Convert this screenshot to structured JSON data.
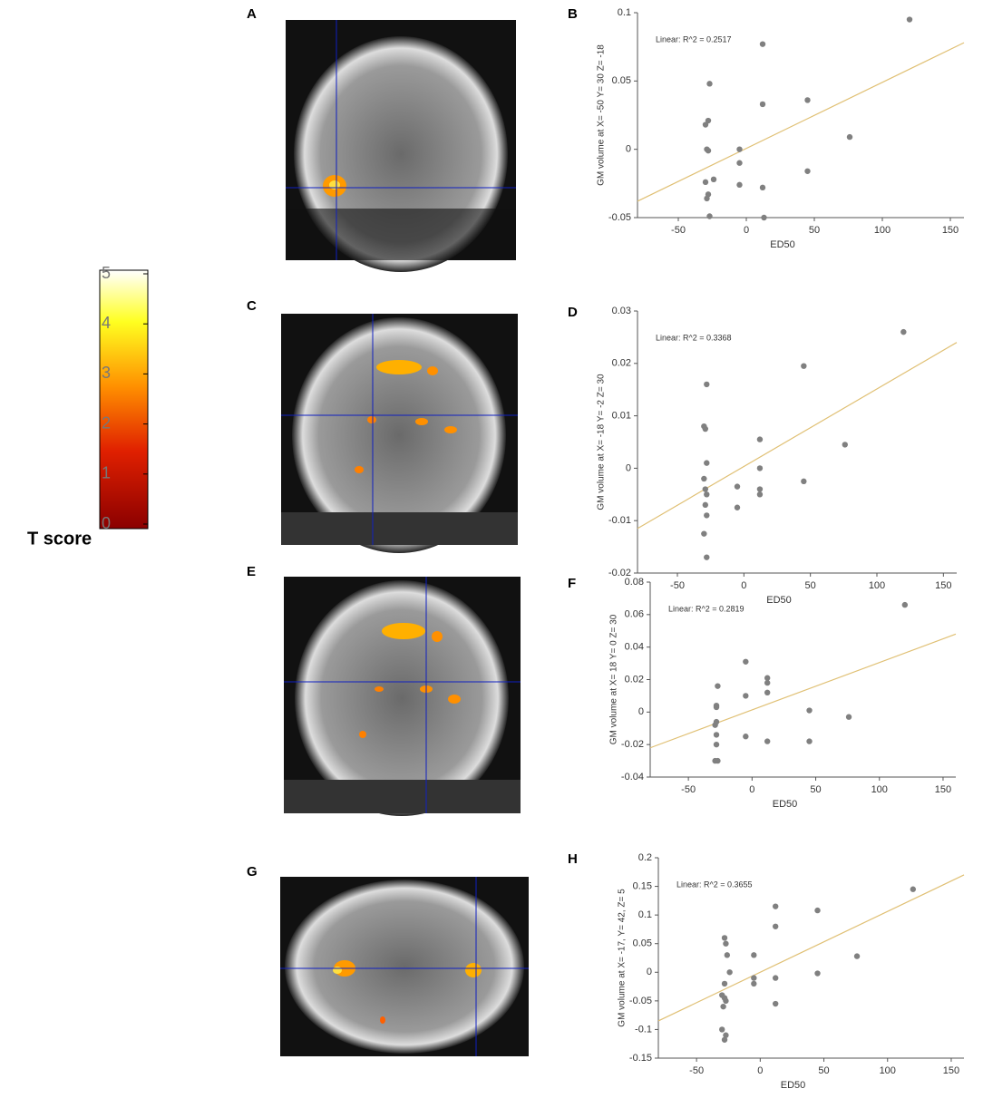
{
  "panels": [
    "A",
    "C",
    "E",
    "G"
  ],
  "colorbar": {
    "label": "T score",
    "lim": [
      0,
      5
    ],
    "ticks": [
      0,
      1,
      2,
      3,
      4,
      5
    ]
  },
  "chart_data": [
    {
      "type": "scatter",
      "panel": "B",
      "annotation": "Linear: R^2 = 0.2517",
      "x_label": "ED50",
      "y_label": "GM volume at X= -50 Y= 30 Z= -18",
      "color": "#808080",
      "fit_color": "#e0c074",
      "x": [
        -30,
        -28,
        -27,
        -29,
        -28,
        -30,
        -28,
        -29,
        -27,
        -24,
        -5,
        -5,
        -5,
        12,
        12,
        12,
        13,
        45,
        45,
        76,
        120
      ],
      "y": [
        0.018,
        0.021,
        0.048,
        0,
        -0.001,
        -0.024,
        -0.033,
        -0.036,
        -0.049,
        -0.022,
        0,
        -0.01,
        -0.026,
        0.077,
        0.033,
        -0.028,
        -0.05,
        0.036,
        -0.016,
        0.009,
        0.095
      ],
      "fit": {
        "x": [
          -80,
          160
        ],
        "y": [
          -0.038,
          0.078
        ]
      },
      "xlim": [
        -80,
        160
      ],
      "xticks": [
        -50,
        0,
        50,
        100,
        150
      ],
      "ylim": [
        -0.05,
        0.1
      ],
      "yticks": [
        -0.05,
        0,
        0.05,
        0.1
      ]
    },
    {
      "type": "scatter",
      "panel": "D",
      "annotation": "Linear: R^2 = 0.3368",
      "x_label": "ED50",
      "y_label": "GM volume at X= -18 Y= -2 Z= 30",
      "color": "#808080",
      "fit_color": "#e0c074",
      "x": [
        -28,
        -30,
        -29,
        -28,
        -30,
        -29,
        -28,
        -29,
        -28,
        -30,
        -28,
        -5,
        -5,
        12,
        12,
        12,
        12,
        45,
        45,
        76,
        120
      ],
      "y": [
        0.016,
        0.008,
        0.0075,
        0.001,
        -0.002,
        -0.004,
        -0.005,
        -0.007,
        -0.009,
        -0.0125,
        -0.017,
        -0.0035,
        -0.0075,
        0.0055,
        0,
        -0.004,
        -0.005,
        0.0195,
        -0.0025,
        0.0045,
        0.026
      ],
      "fit": {
        "x": [
          -80,
          160
        ],
        "y": [
          -0.0115,
          0.024
        ]
      },
      "xlim": [
        -80,
        160
      ],
      "xticks": [
        -50,
        0,
        50,
        100,
        150
      ],
      "ylim": [
        -0.02,
        0.03
      ],
      "yticks": [
        -0.02,
        -0.01,
        0,
        0.01,
        0.02,
        0.03
      ]
    },
    {
      "type": "scatter",
      "panel": "F",
      "annotation": "Linear: R^2 = 0.2819",
      "x_label": "ED50",
      "y_label": "GM volume at X= 18 Y= 0 Z= 30",
      "color": "#808080",
      "fit_color": "#e0c074",
      "x": [
        -27,
        -28,
        -28,
        -28,
        -29,
        -28,
        -28,
        -29,
        -27,
        -5,
        -5,
        -5,
        12,
        12,
        12,
        12,
        45,
        45,
        76,
        120
      ],
      "y": [
        0.016,
        0.004,
        0.003,
        -0.006,
        -0.008,
        -0.014,
        -0.02,
        -0.03,
        -0.03,
        0.031,
        0.01,
        -0.015,
        0.021,
        0.018,
        0.012,
        -0.018,
        0.001,
        -0.018,
        -0.003,
        0.066
      ],
      "fit": {
        "x": [
          -80,
          160
        ],
        "y": [
          -0.022,
          0.048
        ]
      },
      "xlim": [
        -80,
        160
      ],
      "xticks": [
        -50,
        0,
        50,
        100,
        150
      ],
      "ylim": [
        -0.04,
        0.08
      ],
      "yticks": [
        -0.04,
        -0.02,
        0,
        0.02,
        0.04,
        0.06,
        0.08
      ]
    },
    {
      "type": "scatter",
      "panel": "H",
      "annotation": "Linear: R^2 = 0.3655",
      "x_label": "ED50",
      "y_label": "GM volume at X= -17, Y= 42, Z= 5",
      "color": "#808080",
      "fit_color": "#e0c074",
      "x": [
        -28,
        -27,
        -26,
        -24,
        -28,
        -30,
        -28,
        -29,
        -27,
        -30,
        -27,
        -28,
        -5,
        -5,
        -5,
        12,
        12,
        12,
        12,
        45,
        45,
        76,
        120
      ],
      "y": [
        0.06,
        0.05,
        0.03,
        0,
        -0.02,
        -0.04,
        -0.045,
        -0.06,
        -0.05,
        -0.1,
        -0.11,
        -0.118,
        0.03,
        -0.01,
        -0.02,
        0.115,
        0.08,
        -0.01,
        -0.055,
        0.108,
        -0.002,
        0.028,
        0.145
      ],
      "fit": {
        "x": [
          -80,
          160
        ],
        "y": [
          -0.085,
          0.17
        ]
      },
      "xlim": [
        -80,
        160
      ],
      "xticks": [
        -50,
        0,
        50,
        100,
        150
      ],
      "ylim": [
        -0.15,
        0.2
      ],
      "yticks": [
        -0.15,
        -0.1,
        -0.05,
        0,
        0.05,
        0.1,
        0.15,
        0.2
      ]
    }
  ]
}
